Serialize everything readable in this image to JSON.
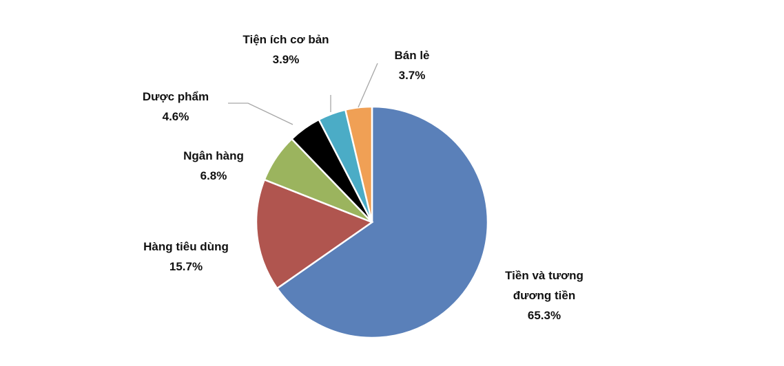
{
  "chart_data": {
    "type": "pie",
    "categories": [
      "Tiền và tương đương tiền",
      "Hàng tiêu dùng",
      "Ngân hàng",
      "Dược phẩm",
      "Tiện ích cơ bản",
      "Bán lẻ"
    ],
    "values": [
      65.3,
      15.7,
      6.8,
      4.6,
      3.9,
      3.7
    ],
    "value_labels": [
      "65.3%",
      "15.7%",
      "6.8%",
      "4.6%",
      "3.9%",
      "3.7%"
    ],
    "colors": [
      "#5a80b9",
      "#b0554f",
      "#9bb45e",
      "#000000",
      "#4bacc6",
      "#f0a055"
    ]
  }
}
